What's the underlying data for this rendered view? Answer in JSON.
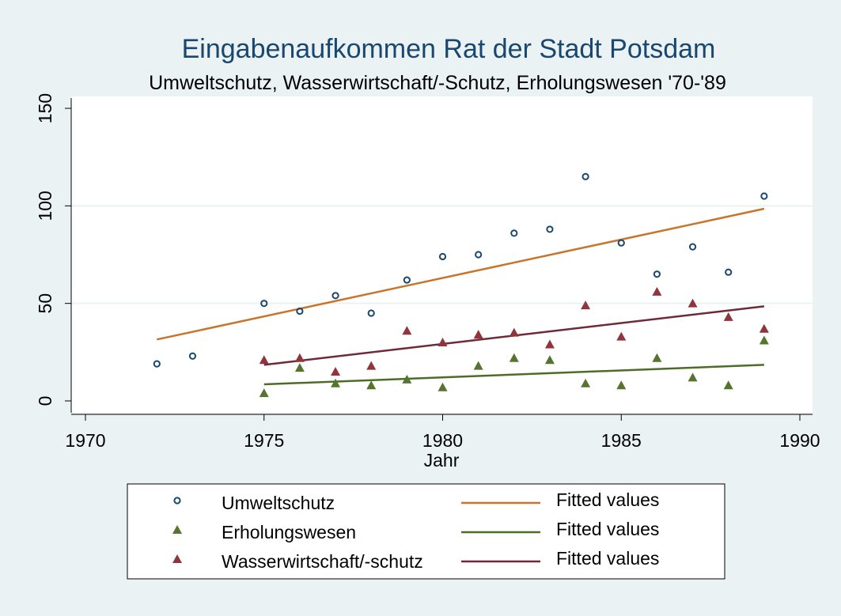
{
  "chart_data": {
    "type": "scatter",
    "title": "Eingabenaufkommen Rat der Stadt Potsdam",
    "subtitle": "Umweltschutz, Wasserwirtschaft/-Schutz, Erholungswesen '70-'89",
    "xlabel": "Jahr",
    "ylabel": "",
    "xlim": [
      1970,
      1990
    ],
    "ylim": [
      0,
      150
    ],
    "xticks": [
      1970,
      1975,
      1980,
      1985,
      1990
    ],
    "yticks": [
      0,
      50,
      100,
      150
    ],
    "grid": true,
    "legend_position": "bottom",
    "series": [
      {
        "name": "Umweltschutz",
        "marker": "circle",
        "color": "#1a476f",
        "points": [
          [
            1972,
            19
          ],
          [
            1973,
            23
          ],
          [
            1975,
            50
          ],
          [
            1976,
            46
          ],
          [
            1977,
            54
          ],
          [
            1978,
            45
          ],
          [
            1979,
            62
          ],
          [
            1980,
            74
          ],
          [
            1981,
            75
          ],
          [
            1982,
            86
          ],
          [
            1983,
            88
          ],
          [
            1984,
            115
          ],
          [
            1985,
            81
          ],
          [
            1986,
            65
          ],
          [
            1987,
            79
          ],
          [
            1988,
            66
          ],
          [
            1989,
            105
          ]
        ]
      },
      {
        "name": "Erholungswesen",
        "marker": "triangle",
        "color": "#55752f",
        "points": [
          [
            1975,
            4
          ],
          [
            1976,
            17
          ],
          [
            1977,
            9
          ],
          [
            1978,
            8
          ],
          [
            1979,
            11
          ],
          [
            1980,
            7
          ],
          [
            1981,
            18
          ],
          [
            1982,
            22
          ],
          [
            1983,
            21
          ],
          [
            1984,
            9
          ],
          [
            1985,
            8
          ],
          [
            1986,
            22
          ],
          [
            1987,
            12
          ],
          [
            1988,
            8
          ],
          [
            1989,
            31
          ]
        ]
      },
      {
        "name": "Wasserwirtschaft/-schutz",
        "marker": "triangle",
        "color": "#90353b",
        "points": [
          [
            1975,
            21
          ],
          [
            1976,
            22
          ],
          [
            1977,
            15
          ],
          [
            1978,
            18
          ],
          [
            1979,
            36
          ],
          [
            1980,
            30
          ],
          [
            1981,
            34
          ],
          [
            1982,
            35
          ],
          [
            1983,
            29
          ],
          [
            1984,
            49
          ],
          [
            1985,
            33
          ],
          [
            1986,
            56
          ],
          [
            1987,
            50
          ],
          [
            1988,
            43
          ],
          [
            1989,
            37
          ]
        ]
      }
    ],
    "fitted_lines": [
      {
        "name": "Fitted values",
        "color": "#c87529",
        "from": [
          1972,
          31.5
        ],
        "to": [
          1989,
          98.5
        ]
      },
      {
        "name": "Fitted values",
        "color": "#4d6d26",
        "from": [
          1975,
          8.5
        ],
        "to": [
          1989,
          18.5
        ]
      },
      {
        "name": "Fitted values",
        "color": "#6e2a39",
        "from": [
          1975,
          18.5
        ],
        "to": [
          1989,
          48.5
        ]
      }
    ]
  }
}
